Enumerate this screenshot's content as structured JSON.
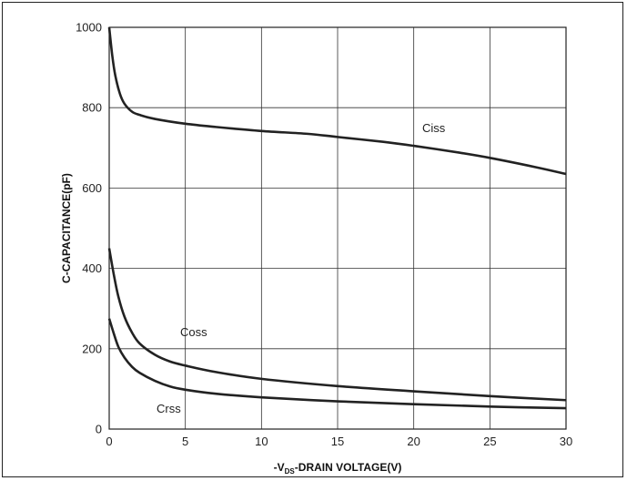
{
  "chart_data": {
    "type": "line",
    "xlabel": {
      "prefix": "-V",
      "subscript": "DS",
      "suffix": "-DRAIN VOLTAGE(V)"
    },
    "ylabel": "C-CAPACITANCE(pF)",
    "xlim": [
      0,
      30
    ],
    "ylim": [
      0,
      1000
    ],
    "x_ticks": [
      0,
      5,
      10,
      15,
      20,
      25,
      30
    ],
    "y_ticks": [
      0,
      200,
      400,
      600,
      800,
      1000
    ],
    "grid": true,
    "series": [
      {
        "name": "Ciss",
        "color": "#222222",
        "x": [
          0,
          0.2,
          0.4,
          0.7,
          1.0,
          1.5,
          2,
          3,
          5,
          7,
          10,
          13,
          15,
          18,
          20,
          23,
          25,
          28,
          30
        ],
        "values": [
          1000,
          930,
          880,
          835,
          810,
          790,
          782,
          772,
          760,
          752,
          742,
          735,
          727,
          715,
          705,
          688,
          675,
          652,
          635
        ]
      },
      {
        "name": "Coss",
        "color": "#222222",
        "x": [
          0,
          0.3,
          0.6,
          1.0,
          1.5,
          2,
          3,
          4,
          5,
          7,
          10,
          15,
          20,
          25,
          30
        ],
        "values": [
          450,
          385,
          330,
          280,
          240,
          213,
          185,
          168,
          158,
          142,
          125,
          107,
          94,
          82,
          72
        ]
      },
      {
        "name": "Crss",
        "color": "#222222",
        "x": [
          0,
          0.3,
          0.6,
          1.0,
          1.5,
          2,
          3,
          4,
          5,
          7,
          10,
          15,
          20,
          25,
          30
        ],
        "values": [
          275,
          238,
          205,
          178,
          155,
          140,
          120,
          106,
          98,
          88,
          79,
          69,
          62,
          56,
          52
        ]
      }
    ]
  }
}
